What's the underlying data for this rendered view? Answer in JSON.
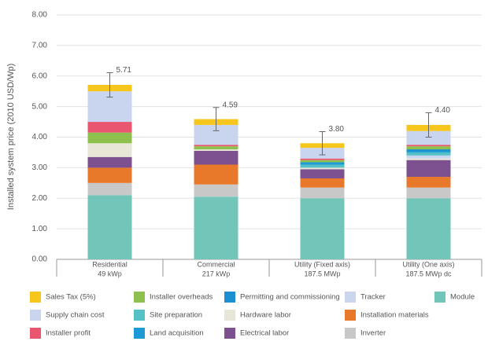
{
  "chart_data": {
    "type": "stacked_bar",
    "y_label": "Installed system price (2010 USD/Wp)",
    "categories": [
      "Residential",
      "Commercial",
      "Utility (Fixed axis)",
      "Utility (One axis)"
    ],
    "category_sublabels": [
      "49 kWp",
      "217 kWp",
      "187.5 MWp",
      "187.5 MWp dc"
    ],
    "ylim": [
      0,
      8
    ],
    "yticks": [
      {
        "value": 0,
        "label": "0.00"
      },
      {
        "value": 1,
        "label": "1.00"
      },
      {
        "value": 2,
        "label": "2.00"
      },
      {
        "value": 3,
        "label": "3.00"
      },
      {
        "value": 4,
        "label": "4.00"
      },
      {
        "value": 5,
        "label": "5.00"
      },
      {
        "value": 6,
        "label": "6.00"
      },
      {
        "value": 7,
        "label": "7.00"
      },
      {
        "value": 8,
        "label": "8.00"
      }
    ],
    "grid": true,
    "series": [
      {
        "name": "Module",
        "color": "#72c6b9",
        "values": [
          2.1,
          2.05,
          2.0,
          2.0
        ]
      },
      {
        "name": "Inverter",
        "color": "#c8c8c8",
        "values": [
          0.4,
          0.4,
          0.35,
          0.35
        ]
      },
      {
        "name": "Installation materials",
        "color": "#e9792a",
        "values": [
          0.5,
          0.65,
          0.3,
          0.35
        ]
      },
      {
        "name": "Electrical labor",
        "color": "#7d5090",
        "values": [
          0.35,
          0.45,
          0.3,
          0.55
        ]
      },
      {
        "name": "Hardware labor",
        "color": "#e8e6d6",
        "values": [
          0.45,
          0.05,
          0.05,
          0.05
        ]
      },
      {
        "name": "Tracker",
        "color": "#cbd5ee",
        "values": [
          0,
          0,
          0,
          0.1
        ]
      },
      {
        "name": "Site preparation",
        "color": "#55c0c6",
        "values": [
          0,
          0,
          0.1,
          0.1
        ]
      },
      {
        "name": "Land acquisition",
        "color": "#1d9ad6",
        "values": [
          0,
          0,
          0.05,
          0.05
        ]
      },
      {
        "name": "Permitting and commissioning",
        "color": "#1b8fd0",
        "values": [
          0,
          0,
          0.03,
          0.05
        ]
      },
      {
        "name": "Installer overheads",
        "color": "#8dc04d",
        "values": [
          0.35,
          0.1,
          0.07,
          0.1
        ]
      },
      {
        "name": "Installer profit",
        "color": "#e9566f",
        "values": [
          0.35,
          0.05,
          0.05,
          0.05
        ]
      },
      {
        "name": "Supply chain cost",
        "color": "#c9d5ee",
        "values": [
          1.0,
          0.65,
          0.35,
          0.45
        ]
      },
      {
        "name": "Sales Tax (5%)",
        "color": "#f6c61c",
        "values": [
          0.21,
          0.19,
          0.15,
          0.2
        ]
      }
    ],
    "totals": [
      5.71,
      4.59,
      3.8,
      4.4
    ],
    "total_labels": [
      "5.71",
      "4.59",
      "3.80",
      "4.40"
    ],
    "errors": [
      0.4,
      0.38,
      0.38,
      0.4
    ]
  }
}
